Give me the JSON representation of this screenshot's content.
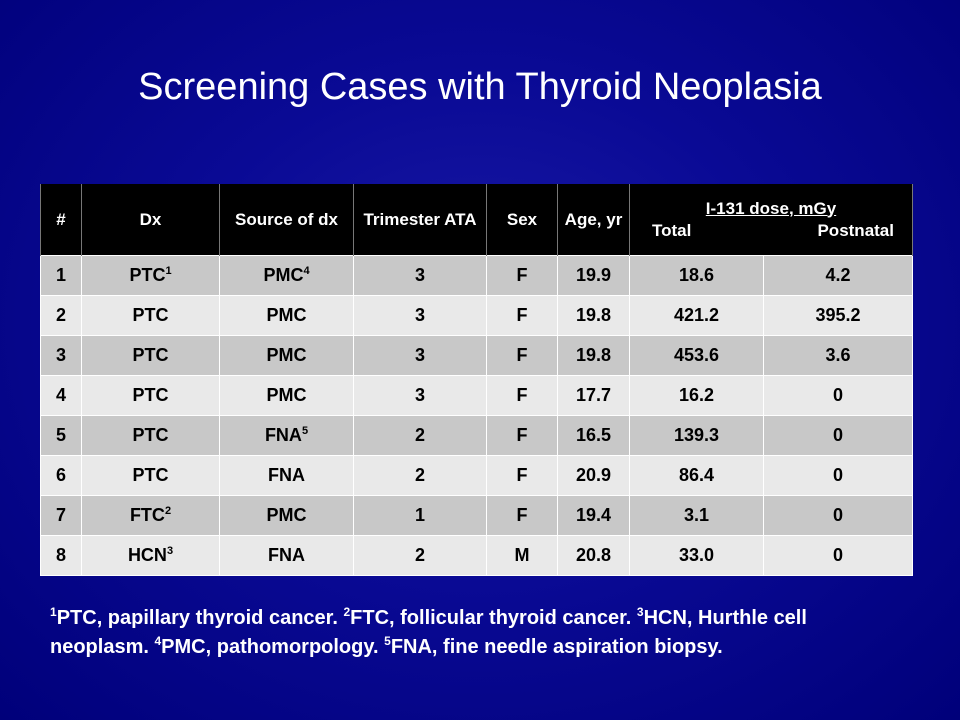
{
  "title": "Screening Cases with Thyroid Neoplasia",
  "table": {
    "headers": {
      "num": "#",
      "dx": "Dx",
      "source": "Source of dx",
      "trimester": "Trimester ATA",
      "sex": "Sex",
      "age": "Age, yr",
      "dose_group": "I-131 dose, mGy",
      "total": "Total",
      "postnatal": "Postnatal"
    },
    "rows": [
      {
        "num": "1",
        "dx": "PTC",
        "dx_sup": "1",
        "source": "PMC",
        "source_sup": "4",
        "trimester": "3",
        "sex": "F",
        "age": "19.9",
        "total": "18.6",
        "postnatal": "4.2"
      },
      {
        "num": "2",
        "dx": "PTC",
        "dx_sup": "",
        "source": "PMC",
        "source_sup": "",
        "trimester": "3",
        "sex": "F",
        "age": "19.8",
        "total": "421.2",
        "postnatal": "395.2"
      },
      {
        "num": "3",
        "dx": "PTC",
        "dx_sup": "",
        "source": "PMC",
        "source_sup": "",
        "trimester": "3",
        "sex": "F",
        "age": "19.8",
        "total": "453.6",
        "postnatal": "3.6"
      },
      {
        "num": "4",
        "dx": "PTC",
        "dx_sup": "",
        "source": "PMC",
        "source_sup": "",
        "trimester": "3",
        "sex": "F",
        "age": "17.7",
        "total": "16.2",
        "postnatal": "0"
      },
      {
        "num": "5",
        "dx": "PTC",
        "dx_sup": "",
        "source": "FNA",
        "source_sup": "5",
        "trimester": "2",
        "sex": "F",
        "age": "16.5",
        "total": "139.3",
        "postnatal": "0"
      },
      {
        "num": "6",
        "dx": "PTC",
        "dx_sup": "",
        "source": "FNA",
        "source_sup": "",
        "trimester": "2",
        "sex": "F",
        "age": "20.9",
        "total": "86.4",
        "postnatal": "0"
      },
      {
        "num": "7",
        "dx": "FTC",
        "dx_sup": "2",
        "source": "PMC",
        "source_sup": "",
        "trimester": "1",
        "sex": "F",
        "age": "19.4",
        "total": "3.1",
        "postnatal": "0"
      },
      {
        "num": "8",
        "dx": "HCN",
        "dx_sup": "3",
        "source": "FNA",
        "source_sup": "",
        "trimester": "2",
        "sex": "M",
        "age": "20.8",
        "total": "33.0",
        "postnatal": "0"
      }
    ]
  },
  "footnotes": [
    {
      "sup": "1",
      "text": "PTC, papillary thyroid cancer. "
    },
    {
      "sup": "2",
      "text": "FTC, follicular thyroid cancer. "
    },
    {
      "sup": "3",
      "text": "HCN, Hurthle cell neoplasm. "
    },
    {
      "sup": "4",
      "text": "PMC, pathomorpology. "
    },
    {
      "sup": "5",
      "text": "FNA, fine needle aspiration biopsy."
    }
  ],
  "colors": {
    "background": "#0a0a95",
    "header_bg": "#000000",
    "row_odd": "#c8c8c8",
    "row_even": "#e9e9e9",
    "text_light": "#ffffff"
  }
}
